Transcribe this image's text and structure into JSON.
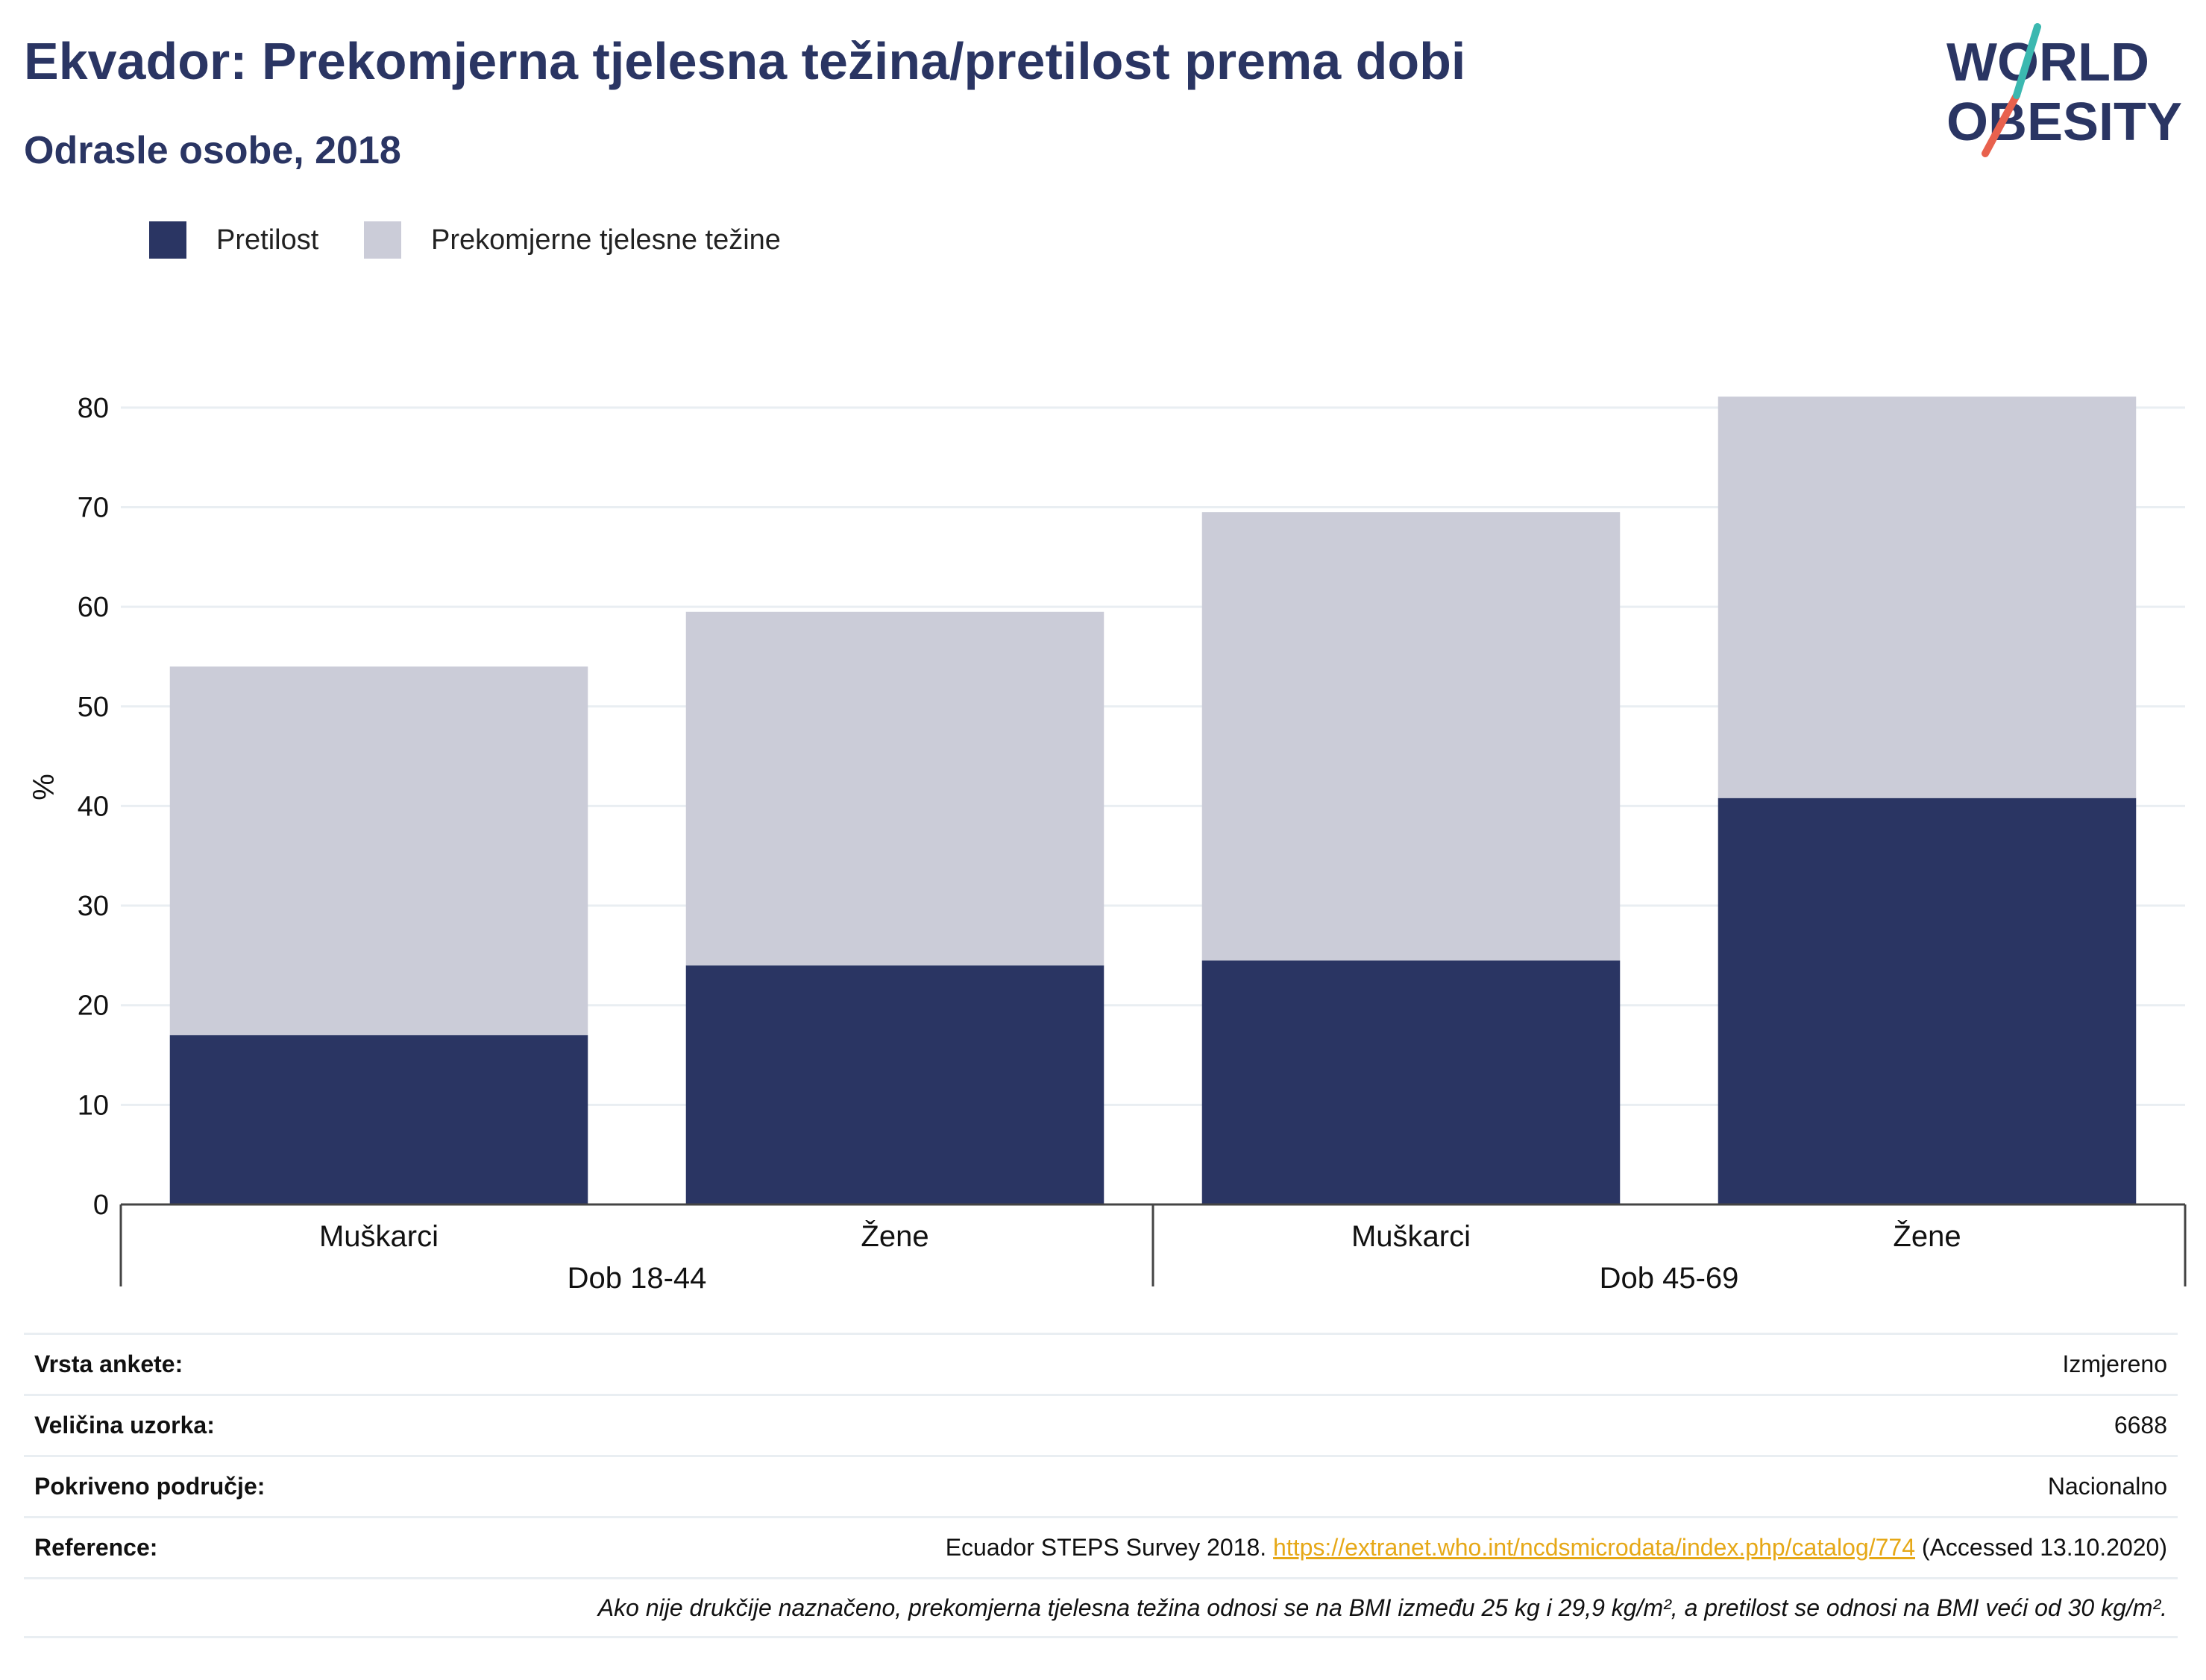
{
  "header": {
    "title": "Ekvador: Prekomjerna tjelesna težina/pretilost prema dobi",
    "subtitle": "Odrasle osobe, 2018"
  },
  "logo": {
    "line1": "WORLD",
    "line2": "OBESITY",
    "icon": "world-obesity-logo"
  },
  "colors": {
    "obesity": "#2a3563",
    "overweight": "#cbccd8",
    "accent_teal": "#3bb8b0",
    "accent_red": "#e8614d",
    "link": "#e6a817"
  },
  "chart_data": {
    "type": "bar",
    "stacked": true,
    "ylabel": "%",
    "ylim": [
      0,
      85
    ],
    "yticks": [
      0,
      10,
      20,
      30,
      40,
      50,
      60,
      70,
      80
    ],
    "grid": true,
    "legend_position": "top-left",
    "categories": [
      "Muškarci",
      "Žene",
      "Muškarci",
      "Žene"
    ],
    "groups": [
      {
        "label": "Dob 18-44",
        "span": [
          0,
          1
        ]
      },
      {
        "label": "Dob 45-69",
        "span": [
          2,
          3
        ]
      }
    ],
    "series": [
      {
        "name": "Pretilost",
        "color": "#2a3563",
        "values": [
          17.0,
          24.0,
          24.5,
          40.8
        ]
      },
      {
        "name": "Prekomjerne tjelesne težine",
        "color": "#cbccd8",
        "values": [
          37.0,
          35.5,
          45.0,
          40.3
        ]
      }
    ]
  },
  "info": {
    "survey_type_label": "Vrsta ankete:",
    "survey_type_value": "Izmjereno",
    "sample_size_label": "Veličina uzorka:",
    "sample_size_value": "6688",
    "coverage_label": "Pokriveno područje:",
    "coverage_value": "Nacionalno",
    "reference_label": "Reference:",
    "reference_prefix": "Ecuador STEPS Survey 2018. ",
    "reference_link": "https://extranet.who.int/ncdsmicrodata/index.php/catalog/774",
    "reference_suffix": " (Accessed 13.10.2020)",
    "note": "Ako nije drukčije naznačeno, prekomjerna tjelesna težina odnosi se na BMI između 25 kg i 29,9 kg/m², a pretilost se odnosi na BMI veći od 30 kg/m²."
  }
}
